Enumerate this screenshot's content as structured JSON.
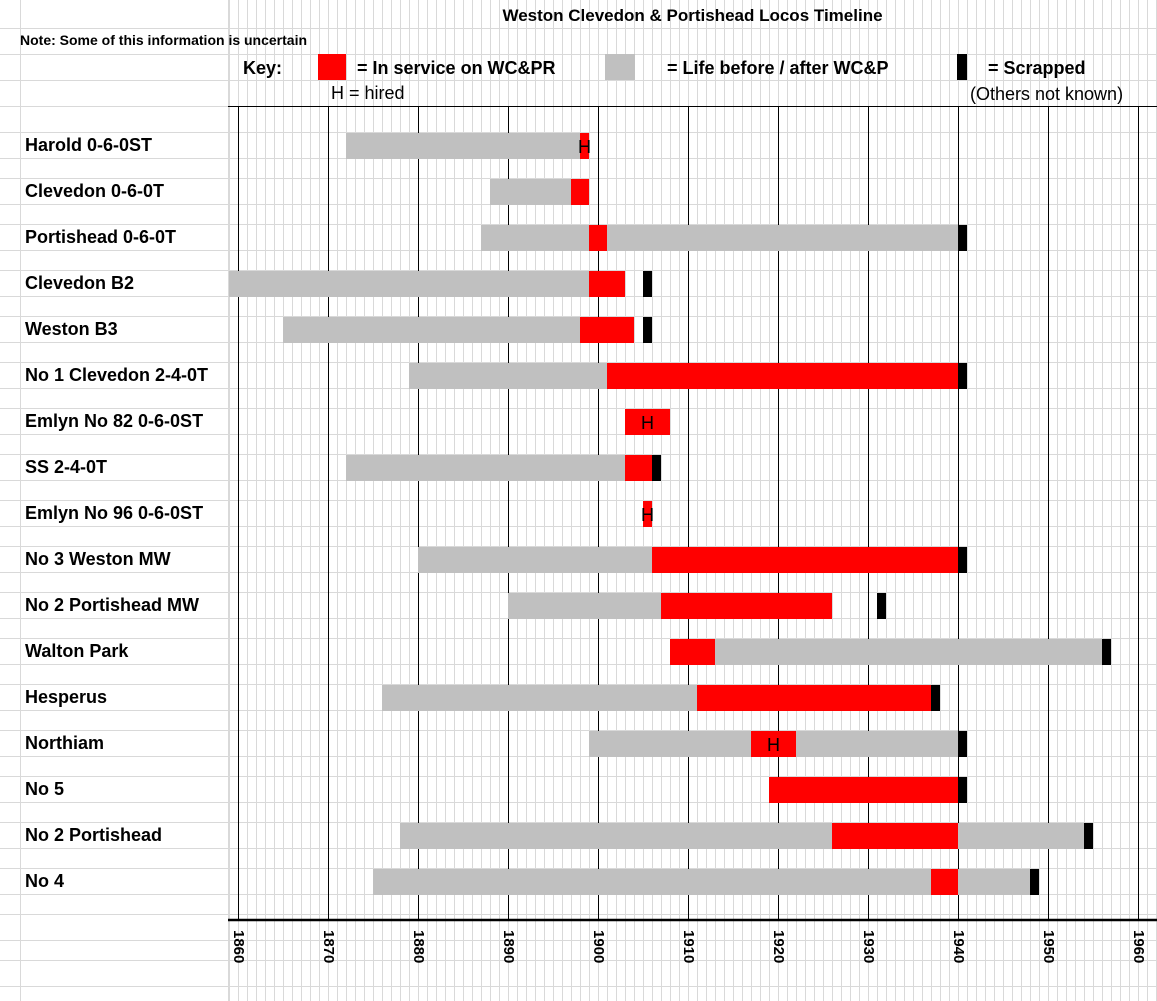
{
  "colors": {
    "in_service": "#ff0000",
    "before_after": "#c0c0c0",
    "scrapped": "#000000"
  },
  "note": "Note: Some of this information is uncertain",
  "key": {
    "label": "Key:",
    "in_service": "= In service on WC&PR",
    "before_after": "= Life before / after WC&P",
    "scrapped": "= Scrapped",
    "hired": "H = hired",
    "others": "(Others not known)"
  },
  "chart_data": {
    "type": "gantt-timeline",
    "title": "Weston Clevedon & Portishead Locos Timeline",
    "xlim": [
      1860,
      1960
    ],
    "xticks": [
      "1860",
      "1870",
      "1880",
      "1890",
      "1900",
      "1910",
      "1920",
      "1930",
      "1940",
      "1950",
      "1960"
    ],
    "rows": [
      {
        "name": "Harold 0-6-0ST",
        "segments": [
          {
            "type": "before_after",
            "start": 1872,
            "end": 1898
          },
          {
            "type": "in_service",
            "start": 1898,
            "end": 1899,
            "label": "H"
          }
        ]
      },
      {
        "name": "Clevedon 0-6-0T",
        "segments": [
          {
            "type": "before_after",
            "start": 1888,
            "end": 1897
          },
          {
            "type": "in_service",
            "start": 1897,
            "end": 1899
          }
        ]
      },
      {
        "name": "Portishead 0-6-0T",
        "segments": [
          {
            "type": "before_after",
            "start": 1887,
            "end": 1899
          },
          {
            "type": "in_service",
            "start": 1899,
            "end": 1901
          },
          {
            "type": "before_after",
            "start": 1901,
            "end": 1940
          },
          {
            "type": "scrapped",
            "start": 1940,
            "end": 1941
          }
        ]
      },
      {
        "name": "Clevedon B2",
        "segments": [
          {
            "type": "before_after",
            "start": 1859,
            "end": 1899
          },
          {
            "type": "in_service",
            "start": 1899,
            "end": 1903
          },
          {
            "type": "scrapped",
            "start": 1905,
            "end": 1906
          }
        ]
      },
      {
        "name": "Weston B3",
        "segments": [
          {
            "type": "before_after",
            "start": 1865,
            "end": 1898
          },
          {
            "type": "in_service",
            "start": 1898,
            "end": 1904
          },
          {
            "type": "scrapped",
            "start": 1905,
            "end": 1906
          }
        ]
      },
      {
        "name": "No 1 Clevedon  2-4-0T",
        "segments": [
          {
            "type": "before_after",
            "start": 1879,
            "end": 1901
          },
          {
            "type": "in_service",
            "start": 1901,
            "end": 1940
          },
          {
            "type": "scrapped",
            "start": 1940,
            "end": 1941
          }
        ]
      },
      {
        "name": "Emlyn No 82  0-6-0ST",
        "segments": [
          {
            "type": "in_service",
            "start": 1903,
            "end": 1908,
            "label": "H"
          }
        ]
      },
      {
        "name": "SS 2-4-0T",
        "segments": [
          {
            "type": "before_after",
            "start": 1872,
            "end": 1903
          },
          {
            "type": "in_service",
            "start": 1903,
            "end": 1906
          },
          {
            "type": "scrapped",
            "start": 1906,
            "end": 1907
          }
        ]
      },
      {
        "name": "Emlyn No 96  0-6-0ST",
        "segments": [
          {
            "type": "in_service",
            "start": 1905,
            "end": 1906,
            "label": "H"
          }
        ]
      },
      {
        "name": "No 3 Weston MW",
        "segments": [
          {
            "type": "before_after",
            "start": 1880,
            "end": 1906
          },
          {
            "type": "in_service",
            "start": 1906,
            "end": 1940
          },
          {
            "type": "scrapped",
            "start": 1940,
            "end": 1941
          }
        ]
      },
      {
        "name": "No 2 Portishead MW",
        "segments": [
          {
            "type": "before_after",
            "start": 1890,
            "end": 1907
          },
          {
            "type": "in_service",
            "start": 1907,
            "end": 1926
          },
          {
            "type": "scrapped",
            "start": 1931,
            "end": 1932
          }
        ]
      },
      {
        "name": "Walton Park",
        "segments": [
          {
            "type": "in_service",
            "start": 1908,
            "end": 1913
          },
          {
            "type": "before_after",
            "start": 1913,
            "end": 1956
          },
          {
            "type": "scrapped",
            "start": 1956,
            "end": 1957
          }
        ]
      },
      {
        "name": "Hesperus",
        "segments": [
          {
            "type": "before_after",
            "start": 1876,
            "end": 1911
          },
          {
            "type": "in_service",
            "start": 1911,
            "end": 1937
          },
          {
            "type": "scrapped",
            "start": 1937,
            "end": 1938
          }
        ]
      },
      {
        "name": "Northiam",
        "segments": [
          {
            "type": "before_after",
            "start": 1899,
            "end": 1917
          },
          {
            "type": "in_service",
            "start": 1917,
            "end": 1922,
            "label": "H"
          },
          {
            "type": "before_after",
            "start": 1922,
            "end": 1940
          },
          {
            "type": "scrapped",
            "start": 1940,
            "end": 1941
          }
        ]
      },
      {
        "name": "No 5",
        "segments": [
          {
            "type": "in_service",
            "start": 1919,
            "end": 1940
          },
          {
            "type": "scrapped",
            "start": 1940,
            "end": 1941
          }
        ]
      },
      {
        "name": "No 2 Portishead",
        "segments": [
          {
            "type": "before_after",
            "start": 1878,
            "end": 1926
          },
          {
            "type": "in_service",
            "start": 1926,
            "end": 1940
          },
          {
            "type": "before_after",
            "start": 1940,
            "end": 1954
          },
          {
            "type": "scrapped",
            "start": 1954,
            "end": 1955
          }
        ]
      },
      {
        "name": "No 4",
        "segments": [
          {
            "type": "before_after",
            "start": 1875,
            "end": 1937
          },
          {
            "type": "in_service",
            "start": 1937,
            "end": 1940
          },
          {
            "type": "before_after",
            "start": 1940,
            "end": 1948
          },
          {
            "type": "scrapped",
            "start": 1948,
            "end": 1949
          }
        ]
      }
    ]
  }
}
